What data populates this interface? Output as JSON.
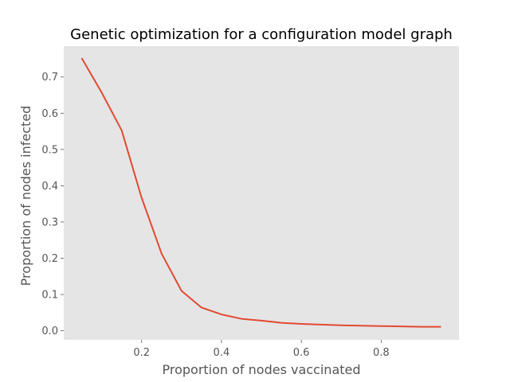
{
  "chart_data": {
    "type": "line",
    "title": "Genetic optimization for a configuration model graph",
    "xlabel": "Proportion of nodes vaccinated",
    "ylabel": "Proportion of nodes infected",
    "xlim": [
      0.005,
      0.995
    ],
    "ylim": [
      -0.025,
      0.785
    ],
    "xticks": [
      0.2,
      0.4,
      0.6,
      0.8
    ],
    "xtick_labels": [
      "0.2",
      "0.4",
      "0.6",
      "0.8"
    ],
    "yticks": [
      0.0,
      0.1,
      0.2,
      0.3,
      0.4,
      0.5,
      0.6,
      0.7
    ],
    "ytick_labels": [
      "0.0",
      "0.1",
      "0.2",
      "0.3",
      "0.4",
      "0.5",
      "0.6",
      "0.7"
    ],
    "grid": false,
    "background_color": "#e5e5e5",
    "series": [
      {
        "color": "#e24a33",
        "x": [
          0.05,
          0.1,
          0.15,
          0.2,
          0.25,
          0.3,
          0.35,
          0.4,
          0.45,
          0.5,
          0.55,
          0.6,
          0.65,
          0.7,
          0.75,
          0.8,
          0.85,
          0.9,
          0.95
        ],
        "y": [
          0.752,
          0.657,
          0.553,
          0.367,
          0.213,
          0.11,
          0.064,
          0.045,
          0.033,
          0.028,
          0.022,
          0.019,
          0.017,
          0.015,
          0.014,
          0.013,
          0.012,
          0.011,
          0.011
        ]
      }
    ]
  }
}
